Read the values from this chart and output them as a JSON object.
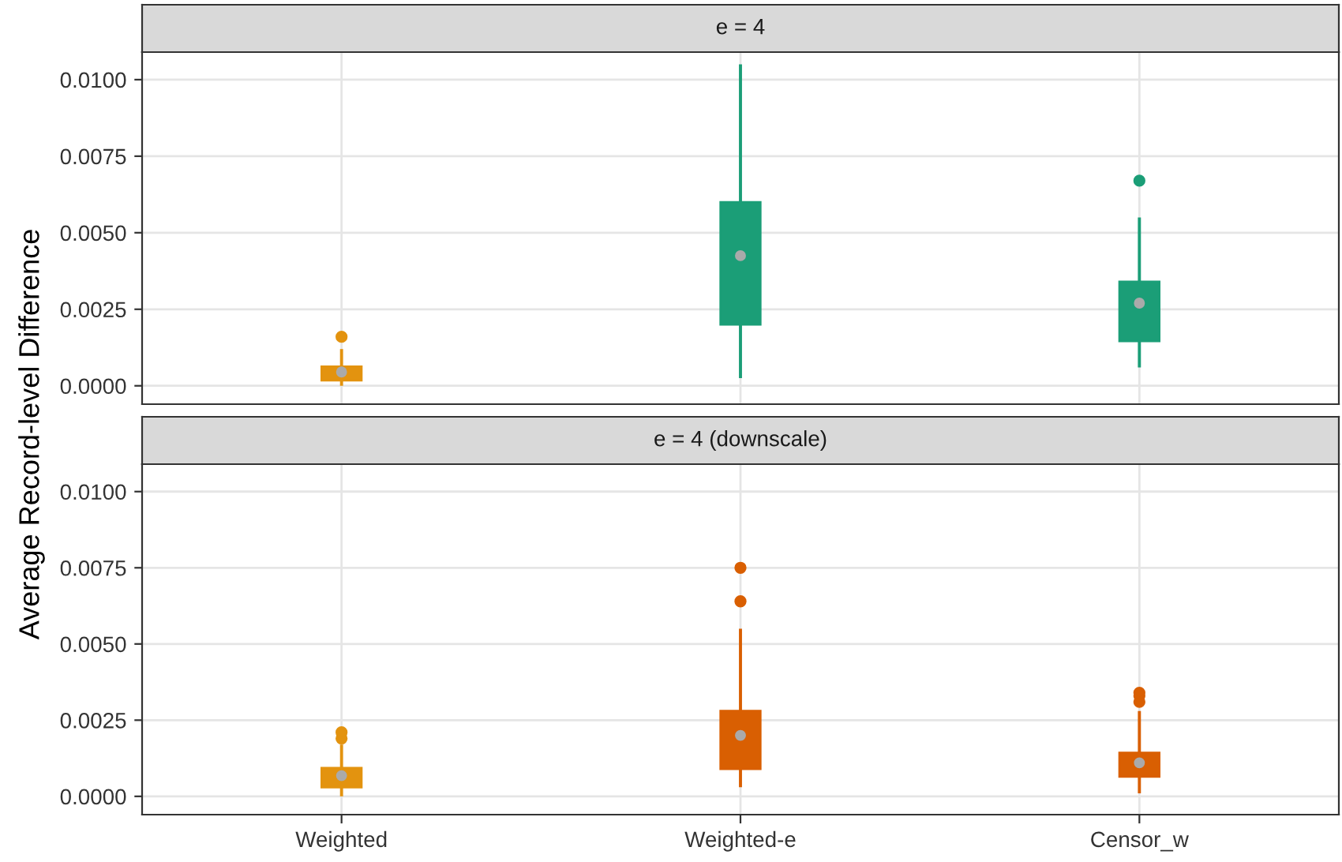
{
  "chart_data": [
    {
      "type": "box",
      "title": "e = 4",
      "ylabel": "Average Record-level Difference",
      "categories": [
        null,
        null,
        null
      ],
      "colors": [
        "#e3930f",
        "#1b9e77",
        "#1b9e77"
      ],
      "ylim": [
        -0.0006,
        0.0109
      ],
      "yticks": [
        {
          "value": 0,
          "label": "0.0000"
        },
        {
          "value": 0.0025,
          "label": "0.0025"
        },
        {
          "value": 0.005,
          "label": "0.0050"
        },
        {
          "value": 0.0075,
          "label": "0.0075"
        },
        {
          "value": 0.01,
          "label": "0.0100"
        }
      ],
      "grid": true,
      "tick_labels": "y",
      "boxes": [
        {
          "low": 0.0,
          "q1": 0.00018,
          "median": 0.00045,
          "q3": 0.00063,
          "high": 0.0012,
          "outliers": [
            0.0016
          ]
        },
        {
          "low": 0.00025,
          "q1": 0.002,
          "median": 0.00425,
          "q3": 0.006,
          "high": 0.0105
        },
        {
          "low": 0.0006,
          "q1": 0.00146,
          "median": 0.0027,
          "q3": 0.0034,
          "high": 0.0055,
          "outliers": [
            0.0067
          ]
        }
      ]
    },
    {
      "type": "box",
      "title": "e = 4 (downscale)",
      "categories": [
        "Weighted",
        "Weighted-e",
        "Censor_w"
      ],
      "colors": [
        "#e3930f",
        "#d95f02",
        "#d95f02"
      ],
      "ylim": [
        -0.0006,
        0.0109
      ],
      "yticks": [
        {
          "value": 0,
          "label": "0.0000"
        },
        {
          "value": 0.0025,
          "label": "0.0025"
        },
        {
          "value": 0.005,
          "label": "0.0050"
        },
        {
          "value": 0.0075,
          "label": "0.0075"
        },
        {
          "value": 0.01,
          "label": "0.0100"
        }
      ],
      "grid": true,
      "boxes": [
        {
          "low": 0.0,
          "q1": 0.0003,
          "median": 0.00068,
          "q3": 0.00093,
          "high": 0.0017,
          "outliers": [
            0.0019,
            0.0021
          ]
        },
        {
          "low": 0.0003,
          "q1": 0.0009,
          "median": 0.002,
          "q3": 0.0028,
          "high": 0.0055,
          "outliers": [
            0.0064,
            0.0075
          ]
        },
        {
          "low": 0.0001,
          "q1": 0.00065,
          "median": 0.0011,
          "q3": 0.00143,
          "high": 0.0028,
          "outliers": [
            0.0031,
            0.0033,
            0.0034
          ]
        }
      ]
    }
  ]
}
